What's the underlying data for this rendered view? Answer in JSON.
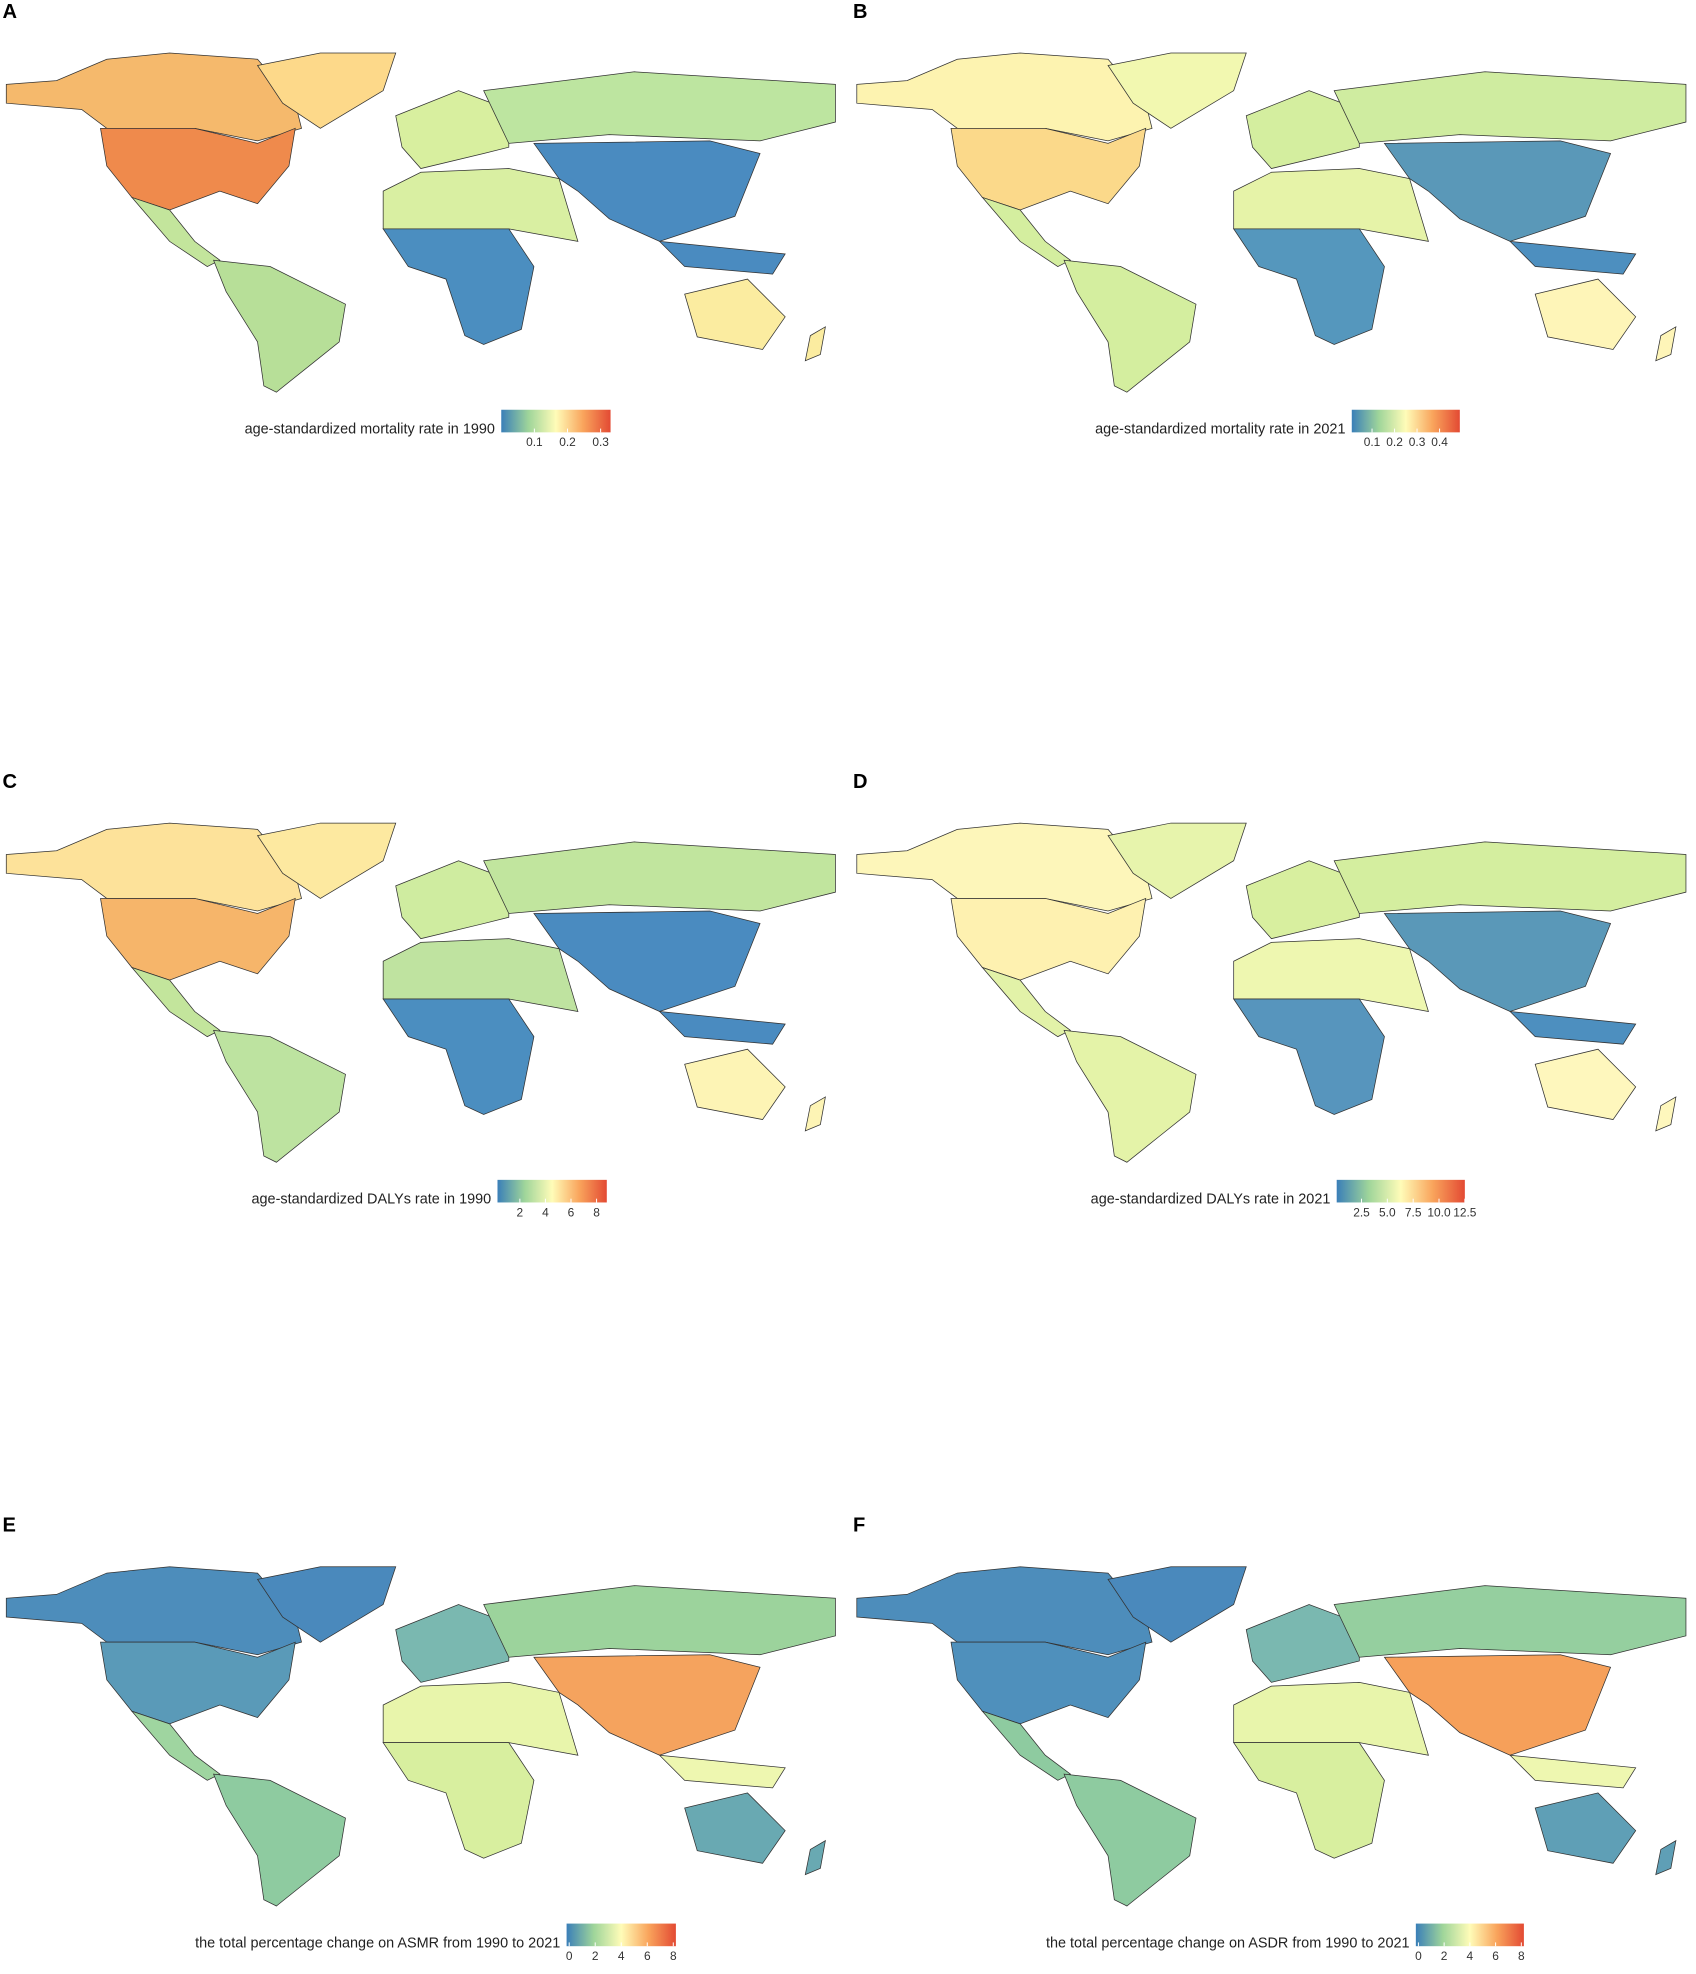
{
  "panels": [
    {
      "label": "A",
      "legend_title": "age-standardized mortality rate in 1990",
      "lim": [
        0.0,
        0.33
      ],
      "ticks": [
        0.1,
        0.2,
        0.3
      ]
    },
    {
      "label": "B",
      "legend_title": "age-standardized mortality rate in 2021",
      "lim": [
        0.01,
        0.49
      ],
      "ticks": [
        0.1,
        0.2,
        0.3,
        0.4
      ]
    },
    {
      "label": "C",
      "legend_title": "age-standardized DALYs rate in 1990",
      "lim": [
        0.25,
        8.8
      ],
      "ticks": [
        2,
        4,
        6,
        8
      ]
    },
    {
      "label": "D",
      "legend_title": "age-standardized DALYs rate in 2021",
      "lim": [
        0.1,
        12.5
      ],
      "ticks": [
        2.5,
        {
          "value": 5,
          "label": "5.0"
        },
        7.5,
        {
          "value": 10,
          "label": "10.0"
        },
        12.5
      ]
    },
    {
      "label": "E",
      "legend_title": "the total percentage change on ASMR from 1990 to 2021",
      "lim": [
        -0.2,
        8.2
      ],
      "ticks": [
        0,
        2,
        4,
        6,
        8
      ]
    },
    {
      "label": "F",
      "legend_title": "the total percentage change on ASDR from 1990 to 2021",
      "lim": [
        -0.2,
        8.2
      ],
      "ticks": [
        0,
        2,
        4,
        6,
        8
      ]
    }
  ],
  "colors": [
    "#3a7fb8",
    "#9fd59a",
    "#fffcb8",
    "#f9a45c",
    "#e34a33"
  ]
}
